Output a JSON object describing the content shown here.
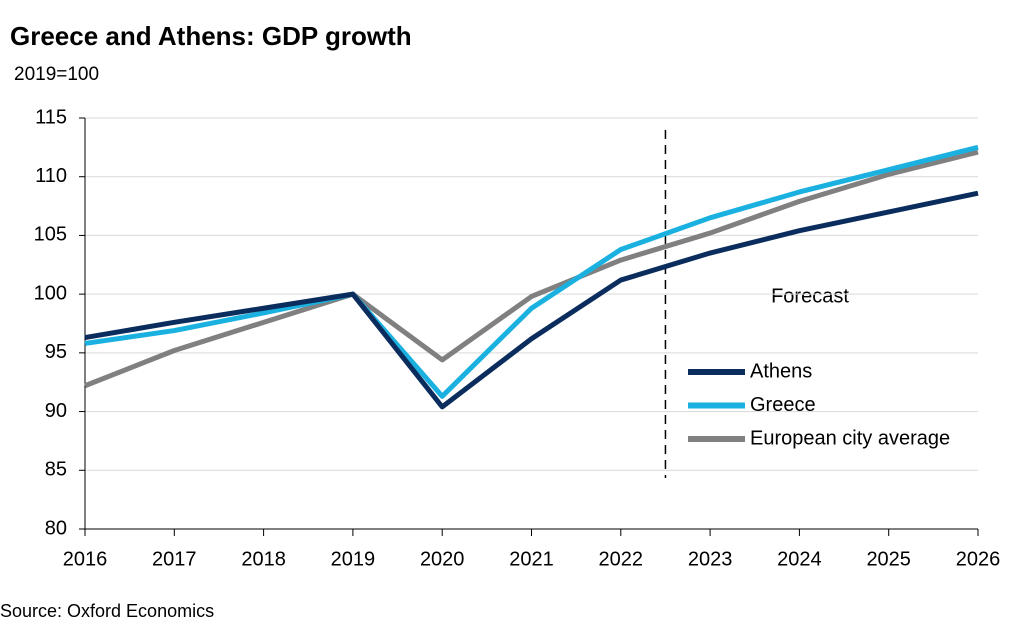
{
  "chart_data": {
    "type": "line",
    "title": "Greece and Athens: GDP growth",
    "subtitle": "2019=100",
    "source": "Source: Oxford Economics",
    "annotation": "Forecast",
    "forecast_divider": 2022.5,
    "x": [
      2016,
      2017,
      2018,
      2019,
      2020,
      2021,
      2022,
      2023,
      2024,
      2025,
      2026
    ],
    "series": [
      {
        "name": "Athens",
        "color": "#0b2d5e",
        "values": [
          96.3,
          97.6,
          98.8,
          100,
          90.4,
          96.2,
          101.2,
          103.5,
          105.4,
          107.0,
          108.6
        ]
      },
      {
        "name": "Greece",
        "color": "#1ab1e0",
        "values": [
          95.8,
          96.9,
          98.4,
          100,
          91.3,
          98.8,
          103.8,
          106.5,
          108.7,
          110.6,
          112.5
        ]
      },
      {
        "name": "European city average",
        "color": "#808080",
        "values": [
          92.2,
          95.2,
          97.6,
          100,
          94.4,
          99.8,
          102.9,
          105.2,
          107.9,
          110.2,
          112.1
        ]
      }
    ],
    "xlim": [
      2016,
      2026
    ],
    "xticks": [
      2016,
      2017,
      2018,
      2019,
      2020,
      2021,
      2022,
      2023,
      2024,
      2025,
      2026
    ],
    "ylim": [
      80,
      115
    ],
    "yticks": [
      80,
      85,
      90,
      95,
      100,
      105,
      110,
      115
    ],
    "grid": true,
    "legend": "right"
  }
}
